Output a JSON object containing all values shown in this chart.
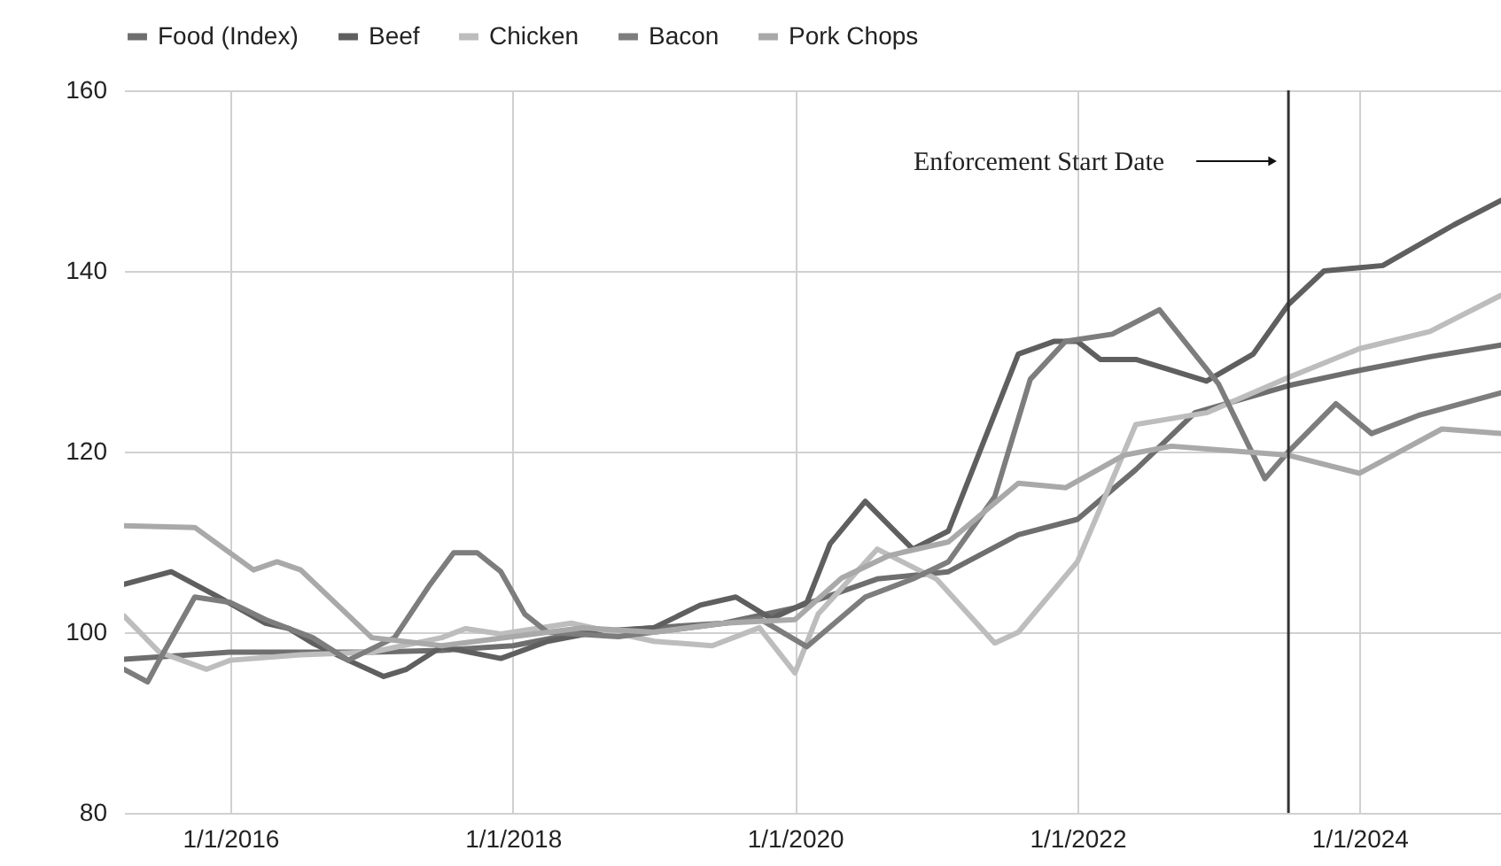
{
  "chart_data": {
    "type": "line",
    "legend": "top",
    "grid": true,
    "line_style": "solid",
    "xlim": [
      "2015-04",
      "2025-01"
    ],
    "ylim": [
      80,
      160
    ],
    "yticks": [
      80,
      100,
      120,
      140,
      160
    ],
    "xticks": [
      {
        "value": "2016-01-01",
        "label": "1/1/2016"
      },
      {
        "value": "2018-01-01",
        "label": "1/1/2018"
      },
      {
        "value": "2020-01-01",
        "label": "1/1/2020"
      },
      {
        "value": "2022-01-01",
        "label": "1/1/2022"
      },
      {
        "value": "2024-01-01",
        "label": "1/1/2024"
      }
    ],
    "ref_lines": [
      {
        "axis": "x",
        "value": "2023-07",
        "color": "#333333"
      }
    ],
    "annotations": [
      "Enforcement Start Date"
    ],
    "series": [
      {
        "name": "Food (Index)",
        "color": "#6e6e6e",
        "x": [
          "2015-04",
          "2016-01",
          "2017-01",
          "2017-07",
          "2018-01",
          "2018-07",
          "2019-01",
          "2019-07",
          "2020-01",
          "2020-08",
          "2021-02",
          "2021-08",
          "2022-01",
          "2022-06",
          "2022-11",
          "2023-07",
          "2024-01",
          "2024-07",
          "2025-01"
        ],
        "values": [
          97,
          97.8,
          97.8,
          98,
          98.5,
          100,
          100.5,
          101,
          102.7,
          105.9,
          106.7,
          110.8,
          112.5,
          118,
          124.3,
          127.3,
          129,
          130.5,
          131.8
        ]
      },
      {
        "name": "Beef",
        "color": "#5f5f5f",
        "x": [
          "2015-04",
          "2015-08",
          "2015-12",
          "2016-04",
          "2016-06",
          "2016-08",
          "2016-11",
          "2017-02",
          "2017-04",
          "2017-07",
          "2017-12",
          "2018-04",
          "2018-08",
          "2019-01",
          "2019-05",
          "2019-08",
          "2019-11",
          "2020-02",
          "2020-04",
          "2020-07",
          "2020-11",
          "2021-02",
          "2021-08",
          "2021-11",
          "2022-01",
          "2022-03",
          "2022-06",
          "2022-09",
          "2022-12",
          "2023-04",
          "2023-07",
          "2023-10",
          "2024-03",
          "2024-09",
          "2025-01"
        ],
        "values": [
          105.3,
          106.7,
          103.9,
          101,
          100.4,
          98.8,
          96.9,
          95.1,
          95.9,
          98.4,
          97.1,
          99,
          100,
          100.5,
          103,
          103.9,
          101.5,
          103.3,
          109.8,
          114.5,
          109.2,
          111.2,
          130.8,
          132.2,
          132.2,
          130.2,
          130.2,
          129,
          127.8,
          130.8,
          136.3,
          140,
          140.6,
          145.1,
          147.8
        ]
      },
      {
        "name": "Chicken",
        "color": "#bdbdbd",
        "x": [
          "2015-04",
          "2015-07",
          "2015-11",
          "2016-01",
          "2016-07",
          "2017-01",
          "2017-07",
          "2017-09",
          "2017-12",
          "2018-06",
          "2019-01",
          "2019-06",
          "2019-10",
          "2020-01",
          "2020-03",
          "2020-08",
          "2021-01",
          "2021-06",
          "2021-08",
          "2022-01",
          "2022-06",
          "2022-12",
          "2023-07",
          "2024-01",
          "2024-07",
          "2025-01"
        ],
        "values": [
          101.8,
          97.8,
          95.9,
          96.9,
          97.5,
          97.8,
          99.4,
          100.4,
          99.8,
          101,
          99,
          98.5,
          100.5,
          95.5,
          102,
          109.2,
          105.9,
          98.8,
          100,
          107.8,
          123,
          124.3,
          128.2,
          131.4,
          133.3,
          137.3
        ]
      },
      {
        "name": "Bacon",
        "color": "#7d7d7d",
        "x": [
          "2015-04",
          "2015-06",
          "2015-07",
          "2015-10",
          "2016-01",
          "2016-04",
          "2016-08",
          "2016-11",
          "2017-03",
          "2017-06",
          "2017-08",
          "2017-10",
          "2017-12",
          "2018-02",
          "2018-04",
          "2018-10",
          "2019-04",
          "2019-10",
          "2020-02",
          "2020-07",
          "2020-11",
          "2021-02",
          "2021-06",
          "2021-09",
          "2021-12",
          "2022-04",
          "2022-08",
          "2023-01",
          "2023-05",
          "2023-07",
          "2023-11",
          "2024-02",
          "2024-06",
          "2025-01"
        ],
        "values": [
          95.9,
          94.5,
          96.9,
          103.9,
          103.3,
          101.4,
          99.4,
          96.9,
          99.4,
          105.3,
          108.8,
          108.8,
          106.7,
          102,
          100,
          99.5,
          100.5,
          101.5,
          98.4,
          103.9,
          105.9,
          107.8,
          115,
          128,
          132.2,
          133,
          135.7,
          127.5,
          117,
          120,
          125.3,
          122,
          124,
          126.5
        ]
      },
      {
        "name": "Pork Chops",
        "color": "#a9a9a9",
        "x": [
          "2015-04",
          "2015-10",
          "2016-03",
          "2016-05",
          "2016-07",
          "2017-01",
          "2017-07",
          "2018-01",
          "2018-07",
          "2019-01",
          "2019-07",
          "2020-01",
          "2020-05",
          "2020-09",
          "2021-02",
          "2021-08",
          "2021-12",
          "2022-05",
          "2022-09",
          "2023-07",
          "2024-01",
          "2024-08",
          "2025-01"
        ],
        "values": [
          111.8,
          111.6,
          106.9,
          107.8,
          106.9,
          99.4,
          98.5,
          99.5,
          100.5,
          100,
          101,
          101.4,
          106,
          108.5,
          110,
          116.5,
          116,
          119.6,
          120.6,
          119.6,
          117.6,
          122.5,
          122
        ]
      }
    ]
  }
}
